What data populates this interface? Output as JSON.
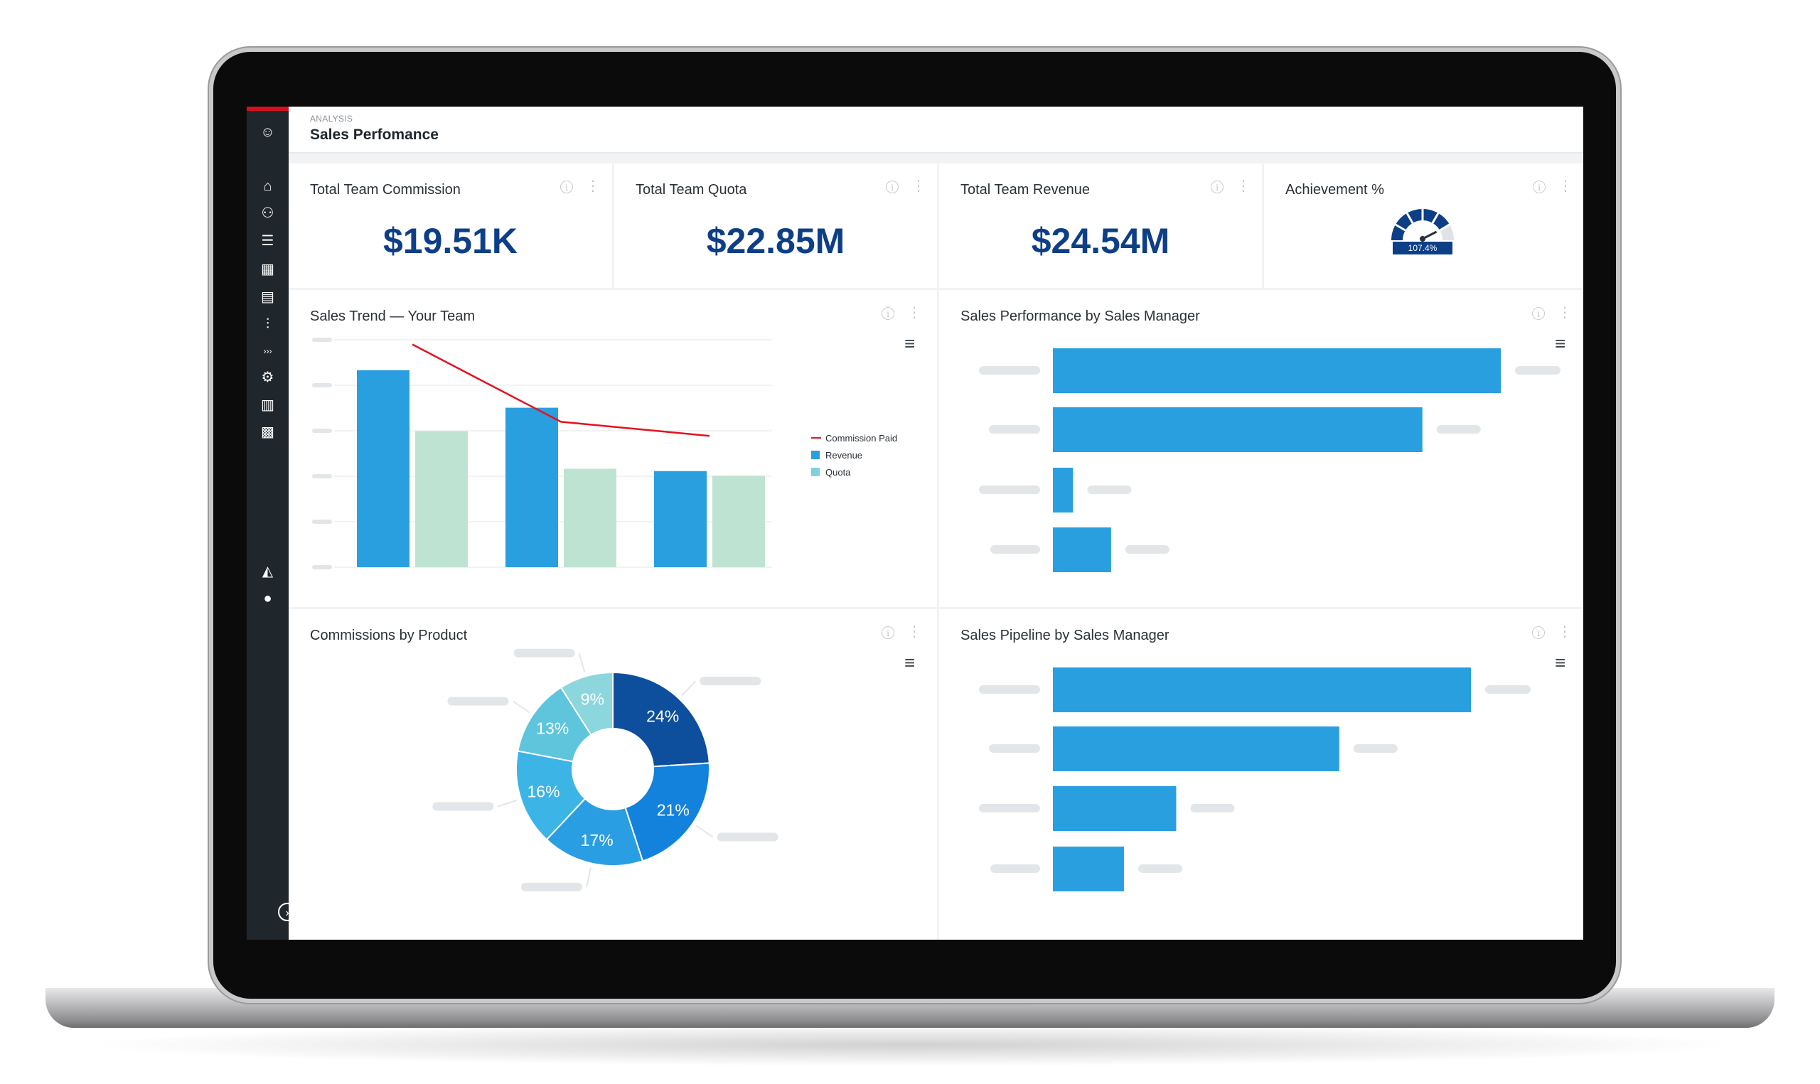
{
  "header": {
    "section": "ANALYSIS",
    "title": "Sales Perfomance"
  },
  "sidebar": {
    "items": [
      {
        "icon": "smiley-icon",
        "glyph": "☺"
      },
      {
        "icon": "home-icon",
        "glyph": "⌂"
      },
      {
        "icon": "team-icon",
        "glyph": "⚇"
      },
      {
        "icon": "list-check-icon",
        "glyph": "☰"
      },
      {
        "icon": "calculator-icon",
        "glyph": "▦"
      },
      {
        "icon": "table-icon",
        "glyph": "▤"
      },
      {
        "icon": "sliders-icon",
        "glyph": "⫶"
      },
      {
        "icon": "more-icon",
        "glyph": "›››"
      },
      {
        "icon": "search-gear-icon",
        "glyph": "⚙"
      },
      {
        "icon": "clipboard-icon",
        "glyph": "▥"
      },
      {
        "icon": "dashboard-add-icon",
        "glyph": "▩"
      },
      {
        "icon": "bell-icon",
        "glyph": "◭"
      },
      {
        "icon": "user-icon",
        "glyph": "●"
      }
    ],
    "expand_glyph": "›"
  },
  "kpis": [
    {
      "title": "Total Team Commission",
      "value": "$19.51K"
    },
    {
      "title": "Total Team Quota",
      "value": "$22.85M"
    },
    {
      "title": "Total Team Revenue",
      "value": "$24.54M"
    },
    {
      "title": "Achievement %",
      "value": "107.4%",
      "gauge_fraction": 0.82
    }
  ],
  "charts": {
    "trend_title": "Sales Trend — Your Team",
    "manager_title": "Sales Performance by Sales Manager",
    "product_title": "Commissions by Product",
    "pipeline_title": "Sales Pipeline by Sales Manager"
  },
  "colors": {
    "revenue": "#2a9fe0",
    "quota": "#bfe3d3",
    "commission": "#e3121f",
    "navy": "#0d3f87"
  },
  "chart_data": [
    {
      "type": "bar",
      "name_ref": "trend",
      "categories": [
        "",
        "",
        ""
      ],
      "series": [
        {
          "name": "Revenue",
          "values": [
            84,
            68,
            41
          ]
        },
        {
          "name": "Quota",
          "values": [
            58,
            42,
            39
          ]
        },
        {
          "name": "Commission Paid",
          "type": "line",
          "values": [
            95,
            62,
            56
          ]
        }
      ],
      "ylim": [
        0,
        100
      ],
      "legend": "right",
      "grid": true
    },
    {
      "type": "bar",
      "name_ref": "manager",
      "orientation": "horizontal",
      "categories": [
        "",
        "",
        "",
        ""
      ],
      "values": [
        100,
        82.5,
        4.5,
        13
      ],
      "xlim": [
        0,
        100
      ]
    },
    {
      "type": "pie",
      "name_ref": "product",
      "donut": true,
      "slices": [
        {
          "label": "24%",
          "value": 24,
          "color": "#0d4f9c"
        },
        {
          "label": "21%",
          "value": 21,
          "color": "#1282dc"
        },
        {
          "label": "17%",
          "value": 17,
          "color": "#2a9ee3"
        },
        {
          "label": "16%",
          "value": 16,
          "color": "#3cb4e5"
        },
        {
          "label": "13%",
          "value": 13,
          "color": "#5ec5dd"
        },
        {
          "label": "9%",
          "value": 9,
          "color": "#8cd6de"
        }
      ]
    },
    {
      "type": "bar",
      "name_ref": "pipeline",
      "orientation": "horizontal",
      "categories": [
        "",
        "",
        "",
        ""
      ],
      "values": [
        100,
        68.5,
        29.5,
        17
      ],
      "xlim": [
        0,
        100
      ]
    }
  ]
}
